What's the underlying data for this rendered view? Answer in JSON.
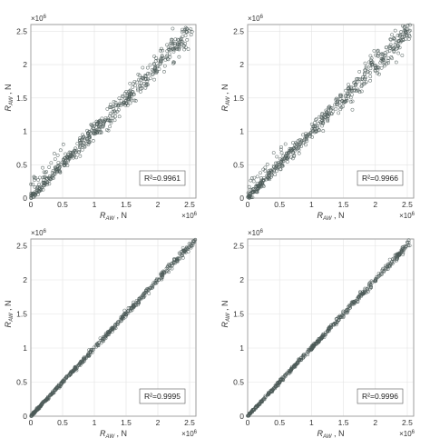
{
  "chart_data": [
    {
      "type": "scatter",
      "xlabel": "R_AW, N",
      "ylabel": "R_AW, N",
      "xlim": [
        0,
        2.6
      ],
      "ylim": [
        0,
        2.6
      ],
      "multiplier": "×10^6",
      "xticks": [
        "0",
        "0.5",
        "1",
        "1.5",
        "2",
        "2.5"
      ],
      "yticks": [
        "0",
        "0.5",
        "1",
        "1.5",
        "2",
        "2.5"
      ],
      "annotation": "R²=0.9961",
      "spread": 0.09,
      "points_x_range": [
        0,
        2.55
      ]
    },
    {
      "type": "scatter",
      "xlabel": "R_AW, N",
      "ylabel": "R_AW, N",
      "xlim": [
        0,
        2.6
      ],
      "ylim": [
        0,
        2.6
      ],
      "multiplier": "×10^6",
      "xticks": [
        "0",
        "0.5",
        "1",
        "1.5",
        "2",
        "2.5"
      ],
      "yticks": [
        "0",
        "0.5",
        "1",
        "1.5",
        "2",
        "2.5"
      ],
      "annotation": "R²=0.9966",
      "spread": 0.085,
      "points_x_range": [
        0,
        2.55
      ]
    },
    {
      "type": "scatter",
      "xlabel": "R_AW, N",
      "ylabel": "R_AW, N",
      "xlim": [
        0,
        2.6
      ],
      "ylim": [
        0,
        2.6
      ],
      "multiplier": "×10^6",
      "xticks": [
        "0",
        "0.5",
        "1",
        "1.5",
        "2",
        "2.5"
      ],
      "yticks": [
        "0",
        "0.5",
        "1",
        "1.5",
        "2",
        "2.5"
      ],
      "annotation": "R²=0.9995",
      "spread": 0.025,
      "points_x_range": [
        0,
        2.6
      ]
    },
    {
      "type": "scatter",
      "xlabel": "R_AW, N",
      "ylabel": "R_AW, N",
      "xlim": [
        0,
        2.6
      ],
      "ylim": [
        0,
        2.6
      ],
      "multiplier": "×10^6",
      "xticks": [
        "0",
        "0.5",
        "1",
        "1.5",
        "2",
        "2.5"
      ],
      "yticks": [
        "0",
        "0.5",
        "1",
        "1.5",
        "2",
        "2.5"
      ],
      "annotation": "R²=0.9996",
      "spread": 0.022,
      "points_x_range": [
        0,
        2.55
      ]
    }
  ]
}
